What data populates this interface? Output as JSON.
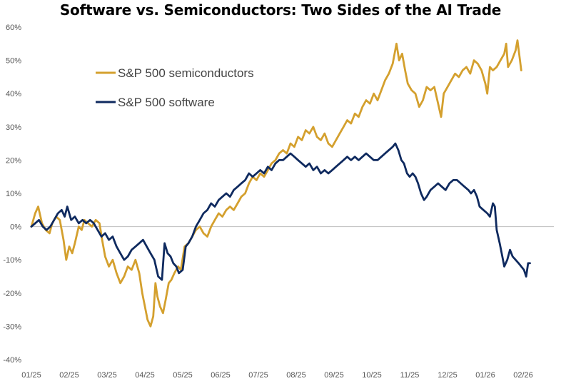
{
  "chart_data": {
    "type": "line",
    "title": "Software vs. Semiconductors: Two Sides of the AI Trade",
    "xlabel": "",
    "ylabel": "",
    "ylim": [
      -40,
      60
    ],
    "y_ticks": [
      60,
      50,
      40,
      30,
      20,
      10,
      0,
      -10,
      -20,
      -30,
      -40
    ],
    "y_tick_labels": [
      "60%",
      "50%",
      "40%",
      "30%",
      "20%",
      "10%",
      "0%",
      "-10%",
      "-20%",
      "-30%",
      "-40%"
    ],
    "x_tick_labels": [
      "01/25",
      "02/25",
      "03/25",
      "04/25",
      "05/25",
      "06/25",
      "07/25",
      "08/25",
      "09/25",
      "10/25",
      "11/25",
      "12/25",
      "01/26",
      "02/26"
    ],
    "x_range_months": [
      0,
      14.0
    ],
    "grid": false,
    "legend_position": "upper-left",
    "series": [
      {
        "name": "S&P 500 semiconductors",
        "color": "#D4A02E",
        "points": [
          [
            0.0,
            0
          ],
          [
            0.1,
            4
          ],
          [
            0.18,
            6
          ],
          [
            0.28,
            1
          ],
          [
            0.38,
            -1
          ],
          [
            0.48,
            -2
          ],
          [
            0.55,
            1
          ],
          [
            0.65,
            3
          ],
          [
            0.75,
            2
          ],
          [
            0.85,
            -4
          ],
          [
            0.92,
            -10
          ],
          [
            1.0,
            -6
          ],
          [
            1.08,
            -8
          ],
          [
            1.15,
            -5
          ],
          [
            1.25,
            0
          ],
          [
            1.33,
            -1
          ],
          [
            1.4,
            2
          ],
          [
            1.5,
            1
          ],
          [
            1.6,
            0
          ],
          [
            1.7,
            2
          ],
          [
            1.8,
            1
          ],
          [
            1.87,
            -4
          ],
          [
            1.95,
            -9
          ],
          [
            2.05,
            -12
          ],
          [
            2.15,
            -10
          ],
          [
            2.25,
            -14
          ],
          [
            2.35,
            -17
          ],
          [
            2.45,
            -15
          ],
          [
            2.55,
            -12
          ],
          [
            2.65,
            -13
          ],
          [
            2.75,
            -10
          ],
          [
            2.85,
            -14
          ],
          [
            2.93,
            -20
          ],
          [
            3.0,
            -24
          ],
          [
            3.07,
            -28
          ],
          [
            3.15,
            -30
          ],
          [
            3.22,
            -27
          ],
          [
            3.28,
            -17
          ],
          [
            3.33,
            -21
          ],
          [
            3.4,
            -24
          ],
          [
            3.48,
            -26
          ],
          [
            3.55,
            -22
          ],
          [
            3.63,
            -17
          ],
          [
            3.7,
            -16
          ],
          [
            3.78,
            -14
          ],
          [
            3.88,
            -12
          ],
          [
            3.95,
            -13
          ],
          [
            4.05,
            -6
          ],
          [
            4.15,
            -5
          ],
          [
            4.25,
            -3
          ],
          [
            4.35,
            -1
          ],
          [
            4.45,
            0
          ],
          [
            4.55,
            -2
          ],
          [
            4.65,
            -3
          ],
          [
            4.75,
            0
          ],
          [
            4.85,
            2
          ],
          [
            4.95,
            4
          ],
          [
            5.05,
            3
          ],
          [
            5.15,
            5
          ],
          [
            5.25,
            6
          ],
          [
            5.35,
            5
          ],
          [
            5.45,
            7
          ],
          [
            5.55,
            9
          ],
          [
            5.65,
            10
          ],
          [
            5.75,
            13
          ],
          [
            5.85,
            15
          ],
          [
            5.95,
            14
          ],
          [
            6.05,
            16
          ],
          [
            6.15,
            15
          ],
          [
            6.25,
            17
          ],
          [
            6.35,
            19
          ],
          [
            6.45,
            20
          ],
          [
            6.55,
            22
          ],
          [
            6.65,
            23
          ],
          [
            6.75,
            22
          ],
          [
            6.85,
            25
          ],
          [
            6.95,
            24
          ],
          [
            7.05,
            27
          ],
          [
            7.15,
            26
          ],
          [
            7.25,
            29
          ],
          [
            7.35,
            28
          ],
          [
            7.45,
            30
          ],
          [
            7.55,
            27
          ],
          [
            7.65,
            26
          ],
          [
            7.75,
            28
          ],
          [
            7.85,
            25
          ],
          [
            7.95,
            24
          ],
          [
            8.05,
            26
          ],
          [
            8.15,
            28
          ],
          [
            8.25,
            30
          ],
          [
            8.35,
            32
          ],
          [
            8.45,
            31
          ],
          [
            8.55,
            34
          ],
          [
            8.65,
            33
          ],
          [
            8.75,
            36
          ],
          [
            8.85,
            38
          ],
          [
            8.95,
            37
          ],
          [
            9.05,
            40
          ],
          [
            9.15,
            38
          ],
          [
            9.25,
            41
          ],
          [
            9.35,
            44
          ],
          [
            9.45,
            46
          ],
          [
            9.55,
            49
          ],
          [
            9.65,
            55
          ],
          [
            9.72,
            50
          ],
          [
            9.8,
            52
          ],
          [
            9.88,
            47
          ],
          [
            9.95,
            43
          ],
          [
            10.05,
            41
          ],
          [
            10.15,
            40
          ],
          [
            10.25,
            36
          ],
          [
            10.35,
            38
          ],
          [
            10.45,
            42
          ],
          [
            10.55,
            41
          ],
          [
            10.65,
            42
          ],
          [
            10.75,
            37
          ],
          [
            10.83,
            33
          ],
          [
            10.9,
            40
          ],
          [
            11.0,
            42
          ],
          [
            11.1,
            44
          ],
          [
            11.2,
            46
          ],
          [
            11.3,
            45
          ],
          [
            11.4,
            47
          ],
          [
            11.5,
            48
          ],
          [
            11.6,
            46
          ],
          [
            11.7,
            50
          ],
          [
            11.8,
            49
          ],
          [
            11.9,
            47
          ],
          [
            12.0,
            43
          ],
          [
            12.05,
            40
          ],
          [
            12.12,
            48
          ],
          [
            12.2,
            47
          ],
          [
            12.3,
            48
          ],
          [
            12.4,
            50
          ],
          [
            12.5,
            52
          ],
          [
            12.55,
            55
          ],
          [
            12.6,
            48
          ],
          [
            12.7,
            50
          ],
          [
            12.8,
            53
          ],
          [
            12.85,
            56
          ],
          [
            12.95,
            47
          ]
        ]
      },
      {
        "name": "S&P 500 software",
        "color": "#0F2A5F",
        "points": [
          [
            0.0,
            0
          ],
          [
            0.1,
            1
          ],
          [
            0.2,
            2
          ],
          [
            0.3,
            0
          ],
          [
            0.4,
            -1
          ],
          [
            0.5,
            0
          ],
          [
            0.6,
            2
          ],
          [
            0.7,
            4
          ],
          [
            0.8,
            5
          ],
          [
            0.88,
            3
          ],
          [
            0.95,
            6
          ],
          [
            1.05,
            2
          ],
          [
            1.15,
            3
          ],
          [
            1.25,
            1
          ],
          [
            1.35,
            2
          ],
          [
            1.45,
            1
          ],
          [
            1.55,
            2
          ],
          [
            1.65,
            1
          ],
          [
            1.75,
            -1
          ],
          [
            1.85,
            -3
          ],
          [
            1.95,
            -2
          ],
          [
            2.05,
            -4
          ],
          [
            2.15,
            -3
          ],
          [
            2.25,
            -6
          ],
          [
            2.35,
            -8
          ],
          [
            2.45,
            -10
          ],
          [
            2.55,
            -9
          ],
          [
            2.65,
            -7
          ],
          [
            2.75,
            -6
          ],
          [
            2.85,
            -5
          ],
          [
            2.95,
            -4
          ],
          [
            3.05,
            -6
          ],
          [
            3.15,
            -8
          ],
          [
            3.25,
            -10
          ],
          [
            3.35,
            -15
          ],
          [
            3.45,
            -16
          ],
          [
            3.52,
            -5
          ],
          [
            3.6,
            -8
          ],
          [
            3.68,
            -9
          ],
          [
            3.75,
            -11
          ],
          [
            3.83,
            -12
          ],
          [
            3.9,
            -14
          ],
          [
            4.0,
            -13
          ],
          [
            4.08,
            -6
          ],
          [
            4.15,
            -5
          ],
          [
            4.25,
            -3
          ],
          [
            4.35,
            0
          ],
          [
            4.45,
            2
          ],
          [
            4.55,
            4
          ],
          [
            4.65,
            5
          ],
          [
            4.75,
            7
          ],
          [
            4.85,
            6
          ],
          [
            4.95,
            8
          ],
          [
            5.05,
            9
          ],
          [
            5.15,
            10
          ],
          [
            5.25,
            9
          ],
          [
            5.35,
            11
          ],
          [
            5.45,
            12
          ],
          [
            5.55,
            13
          ],
          [
            5.65,
            14
          ],
          [
            5.75,
            16
          ],
          [
            5.85,
            15
          ],
          [
            5.95,
            16
          ],
          [
            6.05,
            17
          ],
          [
            6.15,
            16
          ],
          [
            6.25,
            18
          ],
          [
            6.35,
            17
          ],
          [
            6.45,
            19
          ],
          [
            6.55,
            20
          ],
          [
            6.65,
            20
          ],
          [
            6.75,
            21
          ],
          [
            6.85,
            22
          ],
          [
            6.95,
            21
          ],
          [
            7.05,
            20
          ],
          [
            7.15,
            19
          ],
          [
            7.25,
            18
          ],
          [
            7.35,
            19
          ],
          [
            7.45,
            17
          ],
          [
            7.55,
            18
          ],
          [
            7.65,
            16
          ],
          [
            7.75,
            17
          ],
          [
            7.85,
            16
          ],
          [
            7.95,
            17
          ],
          [
            8.05,
            18
          ],
          [
            8.15,
            19
          ],
          [
            8.25,
            20
          ],
          [
            8.35,
            21
          ],
          [
            8.45,
            20
          ],
          [
            8.55,
            21
          ],
          [
            8.65,
            20
          ],
          [
            8.75,
            21
          ],
          [
            8.85,
            22
          ],
          [
            8.95,
            21
          ],
          [
            9.05,
            20
          ],
          [
            9.15,
            20
          ],
          [
            9.25,
            21
          ],
          [
            9.35,
            22
          ],
          [
            9.45,
            23
          ],
          [
            9.55,
            24
          ],
          [
            9.62,
            25
          ],
          [
            9.7,
            23
          ],
          [
            9.78,
            20
          ],
          [
            9.85,
            19
          ],
          [
            9.93,
            16
          ],
          [
            10.0,
            15
          ],
          [
            10.08,
            16
          ],
          [
            10.15,
            15
          ],
          [
            10.22,
            13
          ],
          [
            10.3,
            10
          ],
          [
            10.38,
            8
          ],
          [
            10.45,
            9
          ],
          [
            10.55,
            11
          ],
          [
            10.65,
            12
          ],
          [
            10.75,
            13
          ],
          [
            10.85,
            12
          ],
          [
            10.95,
            11
          ],
          [
            11.05,
            13
          ],
          [
            11.15,
            14
          ],
          [
            11.25,
            14
          ],
          [
            11.35,
            13
          ],
          [
            11.45,
            12
          ],
          [
            11.55,
            11
          ],
          [
            11.62,
            10
          ],
          [
            11.7,
            11
          ],
          [
            11.78,
            9
          ],
          [
            11.85,
            6
          ],
          [
            11.95,
            5
          ],
          [
            12.05,
            4
          ],
          [
            12.12,
            3
          ],
          [
            12.2,
            7
          ],
          [
            12.25,
            6
          ],
          [
            12.3,
            -1
          ],
          [
            12.38,
            -5
          ],
          [
            12.45,
            -9
          ],
          [
            12.5,
            -12
          ],
          [
            12.58,
            -10
          ],
          [
            12.65,
            -7
          ],
          [
            12.72,
            -9
          ],
          [
            12.8,
            -10
          ],
          [
            12.88,
            -11
          ],
          [
            12.95,
            -12
          ],
          [
            13.02,
            -13
          ],
          [
            13.08,
            -15
          ],
          [
            13.13,
            -11
          ],
          [
            13.18,
            -11
          ]
        ]
      }
    ]
  }
}
